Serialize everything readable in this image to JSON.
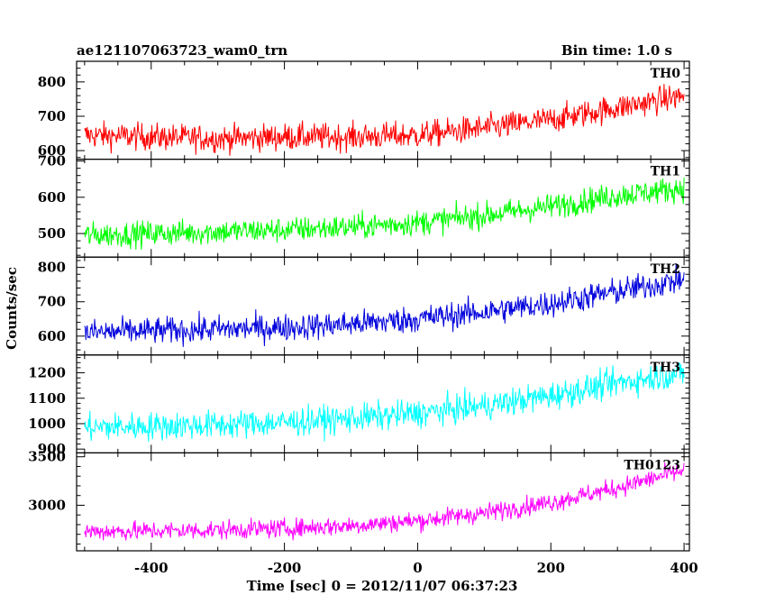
{
  "chart_data": {
    "type": "line",
    "title_left": "ae121107063723_wam0_trn",
    "title_right": "Bin time: 1.0 s",
    "xlabel": "Time [sec] 0 = 2012/11/07 06:37:23",
    "ylabel": "Counts/sec",
    "xlim": [
      -512,
      408
    ],
    "xticks": [
      -400,
      -200,
      0,
      200,
      400
    ],
    "panels": [
      {
        "name": "TH0",
        "color": "#ff0000",
        "ylim": [
          575,
          860
        ],
        "yticks": [
          600,
          700,
          800
        ],
        "x": [
          -500,
          -400,
          -300,
          -200,
          -100,
          0,
          100,
          200,
          300,
          400
        ],
        "y": [
          645,
          640,
          635,
          640,
          640,
          645,
          665,
          690,
          725,
          760
        ],
        "noise": 28
      },
      {
        "name": "TH1",
        "color": "#00ff00",
        "ylim": [
          435,
          705
        ],
        "yticks": [
          500,
          600,
          700
        ],
        "x": [
          -500,
          -400,
          -300,
          -200,
          -100,
          0,
          100,
          200,
          300,
          400
        ],
        "y": [
          495,
          500,
          505,
          510,
          518,
          530,
          550,
          575,
          605,
          625
        ],
        "noise": 25
      },
      {
        "name": "TH2",
        "color": "#0000dd",
        "ylim": [
          545,
          830
        ],
        "yticks": [
          600,
          700,
          800
        ],
        "x": [
          -500,
          -400,
          -300,
          -200,
          -100,
          0,
          100,
          200,
          300,
          400
        ],
        "y": [
          610,
          615,
          620,
          625,
          635,
          650,
          670,
          695,
          730,
          765
        ],
        "noise": 28
      },
      {
        "name": "TH3",
        "color": "#00ffff",
        "ylim": [
          885,
          1270
        ],
        "yticks": [
          900,
          1000,
          1100,
          1200
        ],
        "x": [
          -500,
          -400,
          -300,
          -200,
          -100,
          0,
          100,
          200,
          300,
          400
        ],
        "y": [
          985,
          990,
          995,
          1005,
          1020,
          1040,
          1070,
          1110,
          1160,
          1200
        ],
        "noise": 40
      },
      {
        "name": "TH0123",
        "color": "#ff00ff",
        "ylim": [
          2530,
          3540
        ],
        "yticks": [
          3000,
          3500
        ],
        "x": [
          -500,
          -400,
          -300,
          -200,
          -100,
          0,
          100,
          200,
          300,
          400
        ],
        "y": [
          2730,
          2735,
          2745,
          2760,
          2790,
          2840,
          2920,
          3030,
          3180,
          3360
        ],
        "noise": 70
      }
    ]
  }
}
